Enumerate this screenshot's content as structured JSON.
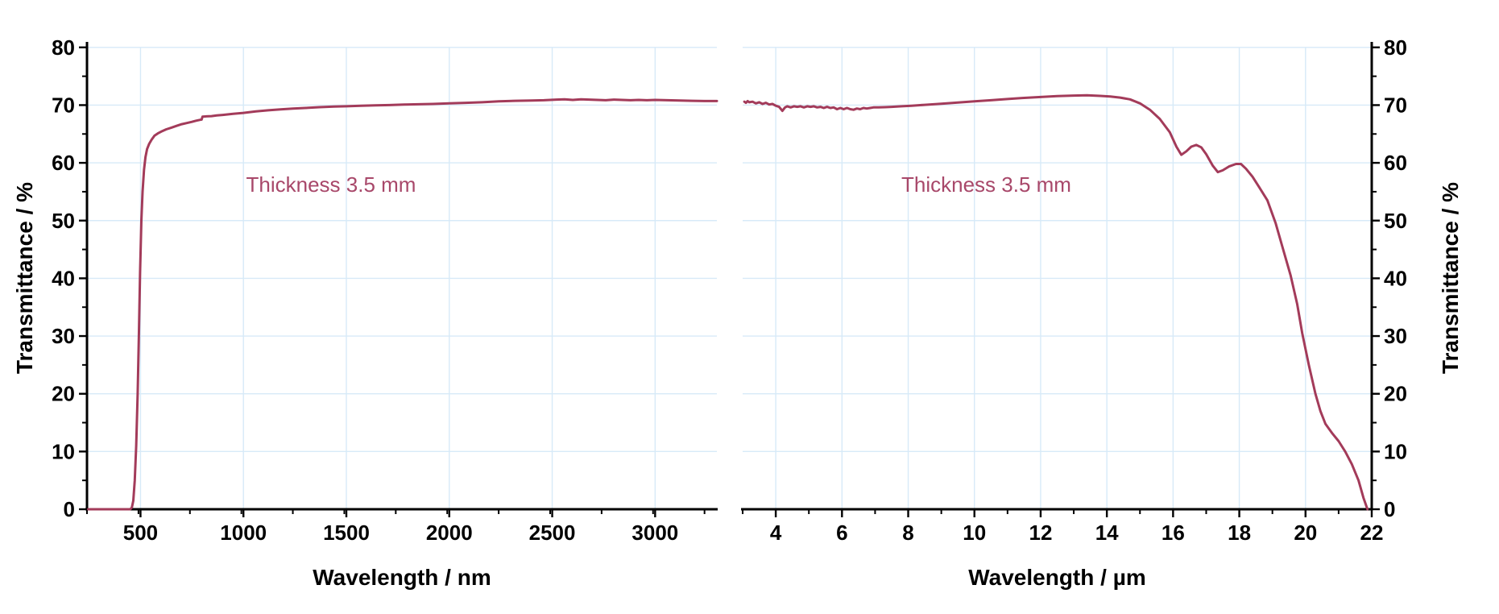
{
  "chart_data": {
    "type": "line",
    "title": "",
    "ylabel": "Transmittance / %",
    "ylim": [
      0,
      80
    ],
    "yticks": [
      0,
      10,
      20,
      30,
      40,
      50,
      60,
      70,
      80
    ],
    "y_minor_step": 5,
    "grid": true,
    "legend": "none",
    "line_color": "#A33B5A",
    "grid_color": "#D7EAF8",
    "axis_color": "#000000",
    "annotation_color": "#A8486A",
    "panels": [
      {
        "xlabel": "Wavelength / nm",
        "xlim": [
          240,
          3300
        ],
        "xticks": [
          500,
          1000,
          1500,
          2000,
          2500,
          3000
        ],
        "x_minor_step": 250,
        "yaxis_side": "left",
        "annotation": "Thickness 3.5 mm",
        "series": [
          {
            "name": "transmittance-uv-vis-nir",
            "points": [
              [
                246,
                0
              ],
              [
                300,
                0
              ],
              [
                360,
                0
              ],
              [
                420,
                0
              ],
              [
                450,
                0
              ],
              [
                458,
                0.3
              ],
              [
                465,
                1.5
              ],
              [
                472,
                5
              ],
              [
                479,
                11
              ],
              [
                486,
                20
              ],
              [
                492,
                30
              ],
              [
                498,
                41
              ],
              [
                504,
                50
              ],
              [
                510,
                55
              ],
              [
                517,
                58.8
              ],
              [
                524,
                61
              ],
              [
                532,
                62.4
              ],
              [
                542,
                63.3
              ],
              [
                554,
                64
              ],
              [
                568,
                64.7
              ],
              [
                584,
                65.1
              ],
              [
                600,
                65.4
              ],
              [
                625,
                65.8
              ],
              [
                650,
                66.1
              ],
              [
                675,
                66.4
              ],
              [
                700,
                66.7
              ],
              [
                725,
                66.9
              ],
              [
                750,
                67.1
              ],
              [
                770,
                67.3
              ],
              [
                790,
                67.45
              ],
              [
                797,
                67.5
              ],
              [
                801,
                68.0
              ],
              [
                820,
                68.05
              ],
              [
                845,
                68.1
              ],
              [
                870,
                68.2
              ],
              [
                900,
                68.3
              ],
              [
                950,
                68.5
              ],
              [
                1000,
                68.65
              ],
              [
                1060,
                68.9
              ],
              [
                1120,
                69.1
              ],
              [
                1180,
                69.25
              ],
              [
                1240,
                69.4
              ],
              [
                1300,
                69.5
              ],
              [
                1370,
                69.65
              ],
              [
                1440,
                69.75
              ],
              [
                1500,
                69.8
              ],
              [
                1570,
                69.9
              ],
              [
                1640,
                69.95
              ],
              [
                1710,
                70.0
              ],
              [
                1780,
                70.1
              ],
              [
                1850,
                70.15
              ],
              [
                1920,
                70.2
              ],
              [
                2000,
                70.3
              ],
              [
                2080,
                70.4
              ],
              [
                2160,
                70.5
              ],
              [
                2240,
                70.65
              ],
              [
                2320,
                70.75
              ],
              [
                2400,
                70.8
              ],
              [
                2460,
                70.85
              ],
              [
                2520,
                70.95
              ],
              [
                2560,
                71.0
              ],
              [
                2600,
                70.9
              ],
              [
                2640,
                71.0
              ],
              [
                2680,
                70.95
              ],
              [
                2720,
                70.9
              ],
              [
                2760,
                70.85
              ],
              [
                2800,
                70.95
              ],
              [
                2840,
                70.9
              ],
              [
                2880,
                70.85
              ],
              [
                2920,
                70.9
              ],
              [
                2960,
                70.85
              ],
              [
                3000,
                70.9
              ],
              [
                3060,
                70.85
              ],
              [
                3120,
                70.8
              ],
              [
                3180,
                70.75
              ],
              [
                3240,
                70.7
              ],
              [
                3300,
                70.7
              ]
            ]
          }
        ]
      },
      {
        "xlabel": "Wavelength / µm",
        "xlim": [
          3,
          22
        ],
        "xticks": [
          4,
          6,
          8,
          10,
          12,
          14,
          16,
          18,
          20,
          22
        ],
        "x_minor_step": 1,
        "yaxis_side": "right",
        "annotation": "Thickness 3.5 mm",
        "series": [
          {
            "name": "transmittance-ir",
            "points": [
              [
                3.05,
                70.6
              ],
              [
                3.1,
                70.4
              ],
              [
                3.15,
                70.7
              ],
              [
                3.2,
                70.5
              ],
              [
                3.3,
                70.6
              ],
              [
                3.4,
                70.3
              ],
              [
                3.5,
                70.5
              ],
              [
                3.6,
                70.2
              ],
              [
                3.7,
                70.4
              ],
              [
                3.8,
                70.1
              ],
              [
                3.9,
                70.2
              ],
              [
                4.0,
                69.9
              ],
              [
                4.1,
                69.7
              ],
              [
                4.2,
                69.0
              ],
              [
                4.28,
                69.6
              ],
              [
                4.35,
                69.8
              ],
              [
                4.45,
                69.6
              ],
              [
                4.55,
                69.8
              ],
              [
                4.65,
                69.7
              ],
              [
                4.75,
                69.8
              ],
              [
                4.85,
                69.6
              ],
              [
                4.95,
                69.8
              ],
              [
                5.05,
                69.7
              ],
              [
                5.15,
                69.8
              ],
              [
                5.25,
                69.6
              ],
              [
                5.35,
                69.7
              ],
              [
                5.45,
                69.5
              ],
              [
                5.55,
                69.7
              ],
              [
                5.65,
                69.5
              ],
              [
                5.75,
                69.6
              ],
              [
                5.85,
                69.3
              ],
              [
                5.95,
                69.5
              ],
              [
                6.05,
                69.3
              ],
              [
                6.15,
                69.5
              ],
              [
                6.25,
                69.3
              ],
              [
                6.35,
                69.2
              ],
              [
                6.45,
                69.4
              ],
              [
                6.55,
                69.3
              ],
              [
                6.65,
                69.5
              ],
              [
                6.75,
                69.4
              ],
              [
                6.85,
                69.5
              ],
              [
                6.95,
                69.6
              ],
              [
                7.1,
                69.6
              ],
              [
                7.3,
                69.65
              ],
              [
                7.5,
                69.7
              ],
              [
                7.8,
                69.8
              ],
              [
                8.1,
                69.9
              ],
              [
                8.5,
                70.05
              ],
              [
                9.0,
                70.25
              ],
              [
                9.5,
                70.45
              ],
              [
                10.0,
                70.65
              ],
              [
                10.5,
                70.85
              ],
              [
                11.0,
                71.05
              ],
              [
                11.5,
                71.25
              ],
              [
                12.0,
                71.4
              ],
              [
                12.5,
                71.55
              ],
              [
                13.0,
                71.65
              ],
              [
                13.4,
                71.7
              ],
              [
                13.8,
                71.6
              ],
              [
                14.1,
                71.5
              ],
              [
                14.4,
                71.3
              ],
              [
                14.7,
                71.0
              ],
              [
                15.0,
                70.3
              ],
              [
                15.3,
                69.2
              ],
              [
                15.6,
                67.6
              ],
              [
                15.9,
                65.3
              ],
              [
                16.1,
                62.8
              ],
              [
                16.25,
                61.4
              ],
              [
                16.4,
                62.0
              ],
              [
                16.55,
                62.8
              ],
              [
                16.7,
                63.1
              ],
              [
                16.85,
                62.7
              ],
              [
                17.0,
                61.5
              ],
              [
                17.2,
                59.5
              ],
              [
                17.35,
                58.4
              ],
              [
                17.5,
                58.7
              ],
              [
                17.7,
                59.4
              ],
              [
                17.9,
                59.8
              ],
              [
                18.05,
                59.8
              ],
              [
                18.2,
                59.0
              ],
              [
                18.4,
                57.6
              ],
              [
                18.6,
                55.8
              ],
              [
                18.85,
                53.5
              ],
              [
                19.1,
                49.5
              ],
              [
                19.3,
                45.5
              ],
              [
                19.55,
                40.5
              ],
              [
                19.75,
                35.5
              ],
              [
                19.9,
                30.5
              ],
              [
                20.1,
                25
              ],
              [
                20.3,
                20
              ],
              [
                20.45,
                17
              ],
              [
                20.6,
                14.8
              ],
              [
                20.8,
                13.2
              ],
              [
                21.0,
                11.8
              ],
              [
                21.2,
                10
              ],
              [
                21.4,
                7.8
              ],
              [
                21.6,
                5
              ],
              [
                21.75,
                2
              ],
              [
                21.87,
                0
              ]
            ]
          }
        ]
      }
    ]
  }
}
